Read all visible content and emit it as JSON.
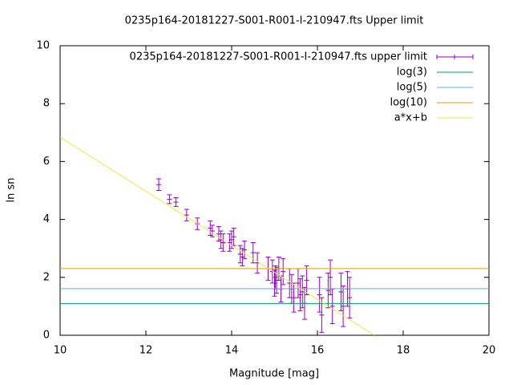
{
  "chart_data": {
    "type": "scatter",
    "title": "0235p164-20181227-S001-R001-I-210947.fts Upper limit",
    "xlabel": "Magnitude [mag]",
    "ylabel": "ln sn",
    "xlim": [
      10,
      20
    ],
    "ylim": [
      0,
      10
    ],
    "xticks": [
      10,
      12,
      14,
      16,
      18,
      20
    ],
    "yticks": [
      0,
      2,
      4,
      6,
      8,
      10
    ],
    "legend": "top right",
    "series": [
      {
        "name": "0235p164-20181227-S001-R001-I-210947.fts upper limit",
        "type": "errorbar",
        "color": "#9400d3",
        "x": [
          12.3,
          12.55,
          12.7,
          12.95,
          13.2,
          13.5,
          13.55,
          13.7,
          13.75,
          13.8,
          13.95,
          14.0,
          14.05,
          14.2,
          14.25,
          14.3,
          14.5,
          14.6,
          14.85,
          14.95,
          15.0,
          15.02,
          15.05,
          15.1,
          15.15,
          15.2,
          15.35,
          15.4,
          15.45,
          15.55,
          15.6,
          15.65,
          15.7,
          15.75,
          16.05,
          16.1,
          16.25,
          16.3,
          16.35,
          16.55,
          16.6,
          16.7,
          16.75
        ],
        "values": [
          5.2,
          4.7,
          4.6,
          4.15,
          3.85,
          3.7,
          3.6,
          3.5,
          3.3,
          3.2,
          3.2,
          3.3,
          3.4,
          2.8,
          2.7,
          2.95,
          2.85,
          2.5,
          2.3,
          2.2,
          1.8,
          2.0,
          1.9,
          2.3,
          1.6,
          2.2,
          1.8,
          1.6,
          1.3,
          1.8,
          1.4,
          1.5,
          1.1,
          1.9,
          1.4,
          0.7,
          1.55,
          2.0,
          1.0,
          1.5,
          1.0,
          1.6,
          1.3
        ],
        "errors": [
          0.2,
          0.15,
          0.15,
          0.2,
          0.2,
          0.25,
          0.2,
          0.25,
          0.3,
          0.3,
          0.3,
          0.3,
          0.3,
          0.3,
          0.3,
          0.3,
          0.35,
          0.35,
          0.4,
          0.4,
          0.45,
          0.4,
          0.45,
          0.4,
          0.45,
          0.45,
          0.5,
          0.5,
          0.5,
          0.5,
          0.55,
          0.55,
          0.55,
          0.5,
          0.6,
          0.6,
          0.6,
          0.6,
          0.6,
          0.65,
          0.7,
          0.6,
          0.7
        ]
      },
      {
        "name": "log(3)",
        "type": "line",
        "color": "#009e73",
        "x": [
          10,
          20
        ],
        "values": [
          1.0986,
          1.0986
        ]
      },
      {
        "name": "log(5)",
        "type": "line",
        "color": "#56b4e9",
        "x": [
          10,
          20
        ],
        "values": [
          1.6094,
          1.6094
        ]
      },
      {
        "name": "log(10)",
        "type": "line",
        "color": "#e69f00",
        "x": [
          10,
          20
        ],
        "values": [
          2.3026,
          2.3026
        ]
      },
      {
        "name": "a*x+b",
        "type": "line",
        "color": "#f0e442",
        "x": [
          10,
          17.33
        ],
        "values": [
          6.84,
          0
        ]
      }
    ]
  }
}
